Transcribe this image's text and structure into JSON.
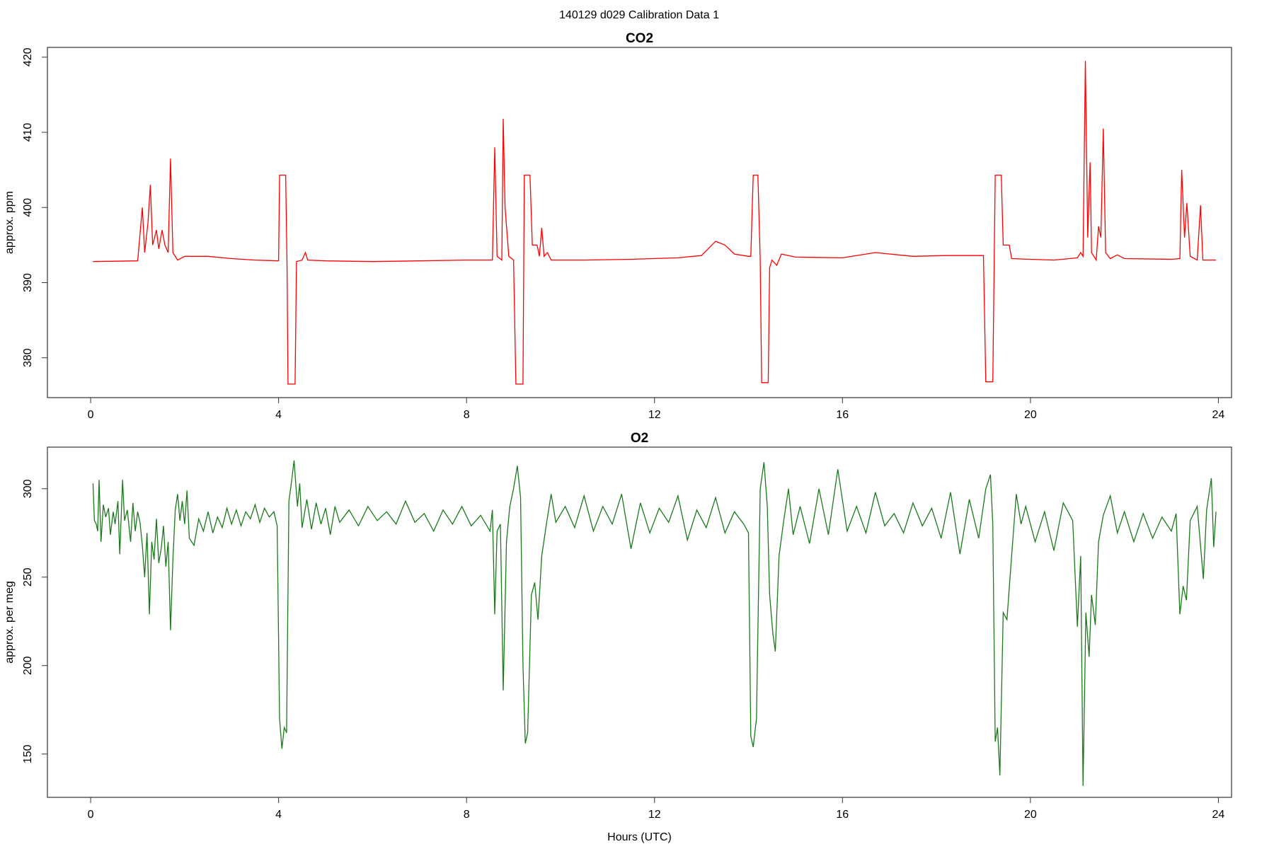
{
  "suptitle": "140129   d029   Calibration Data 1",
  "chart_data": [
    {
      "type": "line",
      "title": "CO2",
      "ylabel": "approx. ppm",
      "color": "#ff0000",
      "xlim": [
        -0.92,
        24.28
      ],
      "ylim": [
        374.7,
        421.3
      ],
      "xticks": [
        0,
        4,
        8,
        12,
        16,
        20,
        24
      ],
      "yticks": [
        380,
        390,
        400,
        410,
        420
      ],
      "x": [
        0.05,
        1.0,
        1.1,
        1.15,
        1.22,
        1.27,
        1.32,
        1.4,
        1.45,
        1.52,
        1.58,
        1.65,
        1.7,
        1.75,
        1.85,
        2.0,
        2.5,
        3.0,
        3.5,
        4.0,
        4.02,
        4.15,
        4.18,
        4.2,
        4.35,
        4.38,
        4.5,
        4.57,
        4.62,
        5,
        6,
        7,
        8,
        8.55,
        8.6,
        8.65,
        8.75,
        8.78,
        8.82,
        8.9,
        9.0,
        9.05,
        9.2,
        9.23,
        9.35,
        9.4,
        9.5,
        9.55,
        9.6,
        9.65,
        9.72,
        9.8,
        10.5,
        11.5,
        12.5,
        13,
        13.3,
        13.5,
        13.7,
        14,
        14.05,
        14.1,
        14.2,
        14.25,
        14.28,
        14.42,
        14.45,
        14.5,
        14.6,
        14.7,
        15,
        16,
        16.7,
        17.5,
        18.2,
        19,
        19.05,
        19.2,
        19.25,
        19.38,
        19.42,
        19.55,
        19.6,
        20,
        20.5,
        21,
        21.07,
        21.12,
        21.17,
        21.22,
        21.27,
        21.3,
        21.4,
        21.45,
        21.5,
        21.55,
        21.6,
        21.7,
        21.85,
        22,
        23,
        23.18,
        23.22,
        23.28,
        23.33,
        23.4,
        23.55,
        23.62,
        23.67,
        23.95
      ],
      "values": [
        392.8,
        392.9,
        400,
        394,
        398,
        403,
        395,
        397,
        394.5,
        397,
        395,
        394,
        406.5,
        394,
        393,
        393.5,
        393.5,
        393.2,
        393,
        392.9,
        404.3,
        404.3,
        392,
        376.5,
        376.5,
        392.8,
        393,
        394,
        393,
        392.9,
        392.8,
        392.9,
        393,
        393,
        408,
        393.5,
        393,
        411.8,
        400,
        393.5,
        393,
        376.5,
        376.5,
        404.3,
        404.3,
        395,
        395,
        393.5,
        397.3,
        393.5,
        394,
        393,
        393,
        393.1,
        393.3,
        393.6,
        395.5,
        395,
        393.8,
        393.5,
        393.5,
        404.3,
        404.3,
        393,
        376.7,
        376.7,
        392,
        393,
        392.3,
        393.8,
        393.4,
        393.3,
        394,
        393.5,
        393.6,
        393.6,
        376.8,
        376.8,
        404.3,
        404.3,
        395,
        395,
        393.2,
        393.1,
        393,
        393.3,
        394,
        393.5,
        419.5,
        396,
        406,
        394,
        393,
        397.5,
        396,
        410.5,
        394,
        393.2,
        393.7,
        393.2,
        393.1,
        393.2,
        405,
        396,
        400.6,
        393.5,
        393,
        400.3,
        393,
        393
      ]
    },
    {
      "type": "line",
      "title": "O2",
      "ylabel": "approx. per meg",
      "xlabel": "Hours (UTC)",
      "color": "#1a7a1a",
      "xlim": [
        -0.92,
        24.28
      ],
      "ylim": [
        125.5,
        323.5
      ],
      "xticks": [
        0,
        4,
        8,
        12,
        16,
        20,
        24
      ],
      "yticks": [
        150,
        200,
        250,
        300
      ],
      "x": [
        0.05,
        0.08,
        0.12,
        0.15,
        0.18,
        0.22,
        0.27,
        0.32,
        0.38,
        0.42,
        0.48,
        0.52,
        0.58,
        0.62,
        0.68,
        0.72,
        0.78,
        0.85,
        0.9,
        0.95,
        1.0,
        1.05,
        1.1,
        1.15,
        1.2,
        1.25,
        1.3,
        1.35,
        1.4,
        1.45,
        1.5,
        1.55,
        1.6,
        1.65,
        1.7,
        1.75,
        1.8,
        1.85,
        1.9,
        1.95,
        2.0,
        2.05,
        2.1,
        2.2,
        2.3,
        2.4,
        2.5,
        2.6,
        2.7,
        2.8,
        2.9,
        3.0,
        3.1,
        3.2,
        3.3,
        3.4,
        3.5,
        3.6,
        3.7,
        3.8,
        3.9,
        3.97,
        4.02,
        4.07,
        4.12,
        4.17,
        4.22,
        4.28,
        4.33,
        4.4,
        4.45,
        4.5,
        4.6,
        4.7,
        4.8,
        4.9,
        5.0,
        5.1,
        5.2,
        5.3,
        5.5,
        5.7,
        5.9,
        6.1,
        6.3,
        6.5,
        6.7,
        6.9,
        7.1,
        7.3,
        7.5,
        7.7,
        7.9,
        8.1,
        8.3,
        8.5,
        8.55,
        8.6,
        8.65,
        8.72,
        8.78,
        8.85,
        8.92,
        9.0,
        9.08,
        9.15,
        9.2,
        9.25,
        9.3,
        9.38,
        9.45,
        9.52,
        9.6,
        9.7,
        9.8,
        9.9,
        10.1,
        10.3,
        10.5,
        10.7,
        10.9,
        11.1,
        11.3,
        11.5,
        11.7,
        11.9,
        12.1,
        12.3,
        12.5,
        12.7,
        12.9,
        13.1,
        13.3,
        13.5,
        13.7,
        13.9,
        14.0,
        14.05,
        14.1,
        14.17,
        14.25,
        14.33,
        14.4,
        14.45,
        14.52,
        14.57,
        14.65,
        14.75,
        14.85,
        14.95,
        15.1,
        15.3,
        15.5,
        15.7,
        15.9,
        16.1,
        16.3,
        16.5,
        16.7,
        16.9,
        17.1,
        17.3,
        17.5,
        17.7,
        17.9,
        18.1,
        18.3,
        18.5,
        18.7,
        18.9,
        19.05,
        19.15,
        19.2,
        19.25,
        19.3,
        19.35,
        19.42,
        19.5,
        19.6,
        19.7,
        19.8,
        19.9,
        20.1,
        20.3,
        20.5,
        20.7,
        20.9,
        21.0,
        21.07,
        21.12,
        21.18,
        21.25,
        21.3,
        21.38,
        21.45,
        21.55,
        21.7,
        21.85,
        22.0,
        22.2,
        22.4,
        22.6,
        22.8,
        23.0,
        23.1,
        23.18,
        23.25,
        23.32,
        23.4,
        23.55,
        23.68,
        23.75,
        23.85,
        23.9,
        23.95
      ],
      "values": [
        303,
        282,
        280,
        276,
        305,
        270,
        291,
        284,
        289,
        274,
        287,
        280,
        293,
        263,
        305,
        282,
        288,
        270,
        292,
        276,
        287,
        281,
        268,
        250,
        275,
        229,
        270,
        260,
        283,
        258,
        266,
        279,
        256,
        270,
        220,
        260,
        288,
        297,
        282,
        293,
        280,
        299,
        272,
        268,
        283,
        276,
        287,
        275,
        284,
        278,
        289,
        280,
        288,
        279,
        287,
        283,
        291,
        281,
        289,
        284,
        287,
        279,
        170,
        153,
        165,
        162,
        293,
        305,
        316,
        290,
        303,
        278,
        294,
        277,
        292,
        280,
        289,
        274,
        290,
        281,
        288,
        279,
        290,
        282,
        287,
        280,
        293,
        281,
        286,
        276,
        288,
        280,
        290,
        279,
        285,
        276,
        288,
        229,
        276,
        280,
        186,
        270,
        290,
        300,
        313,
        295,
        200,
        156,
        162,
        240,
        247,
        226,
        262,
        280,
        297,
        281,
        290,
        278,
        296,
        276,
        290,
        280,
        297,
        266,
        292,
        275,
        289,
        281,
        296,
        271,
        288,
        278,
        295,
        275,
        287,
        280,
        275,
        160,
        154,
        170,
        300,
        315,
        290,
        240,
        218,
        208,
        262,
        282,
        300,
        274,
        290,
        269,
        300,
        274,
        311,
        276,
        290,
        275,
        298,
        279,
        286,
        275,
        292,
        279,
        289,
        272,
        298,
        263,
        294,
        272,
        300,
        308,
        280,
        157,
        165,
        138,
        230,
        226,
        262,
        297,
        280,
        290,
        270,
        287,
        265,
        292,
        282,
        222,
        262,
        132,
        230,
        205,
        240,
        223,
        270,
        285,
        296,
        275,
        287,
        270,
        286,
        272,
        284,
        276,
        286,
        229,
        245,
        237,
        282,
        290,
        249,
        288,
        306,
        267,
        287
      ]
    }
  ]
}
